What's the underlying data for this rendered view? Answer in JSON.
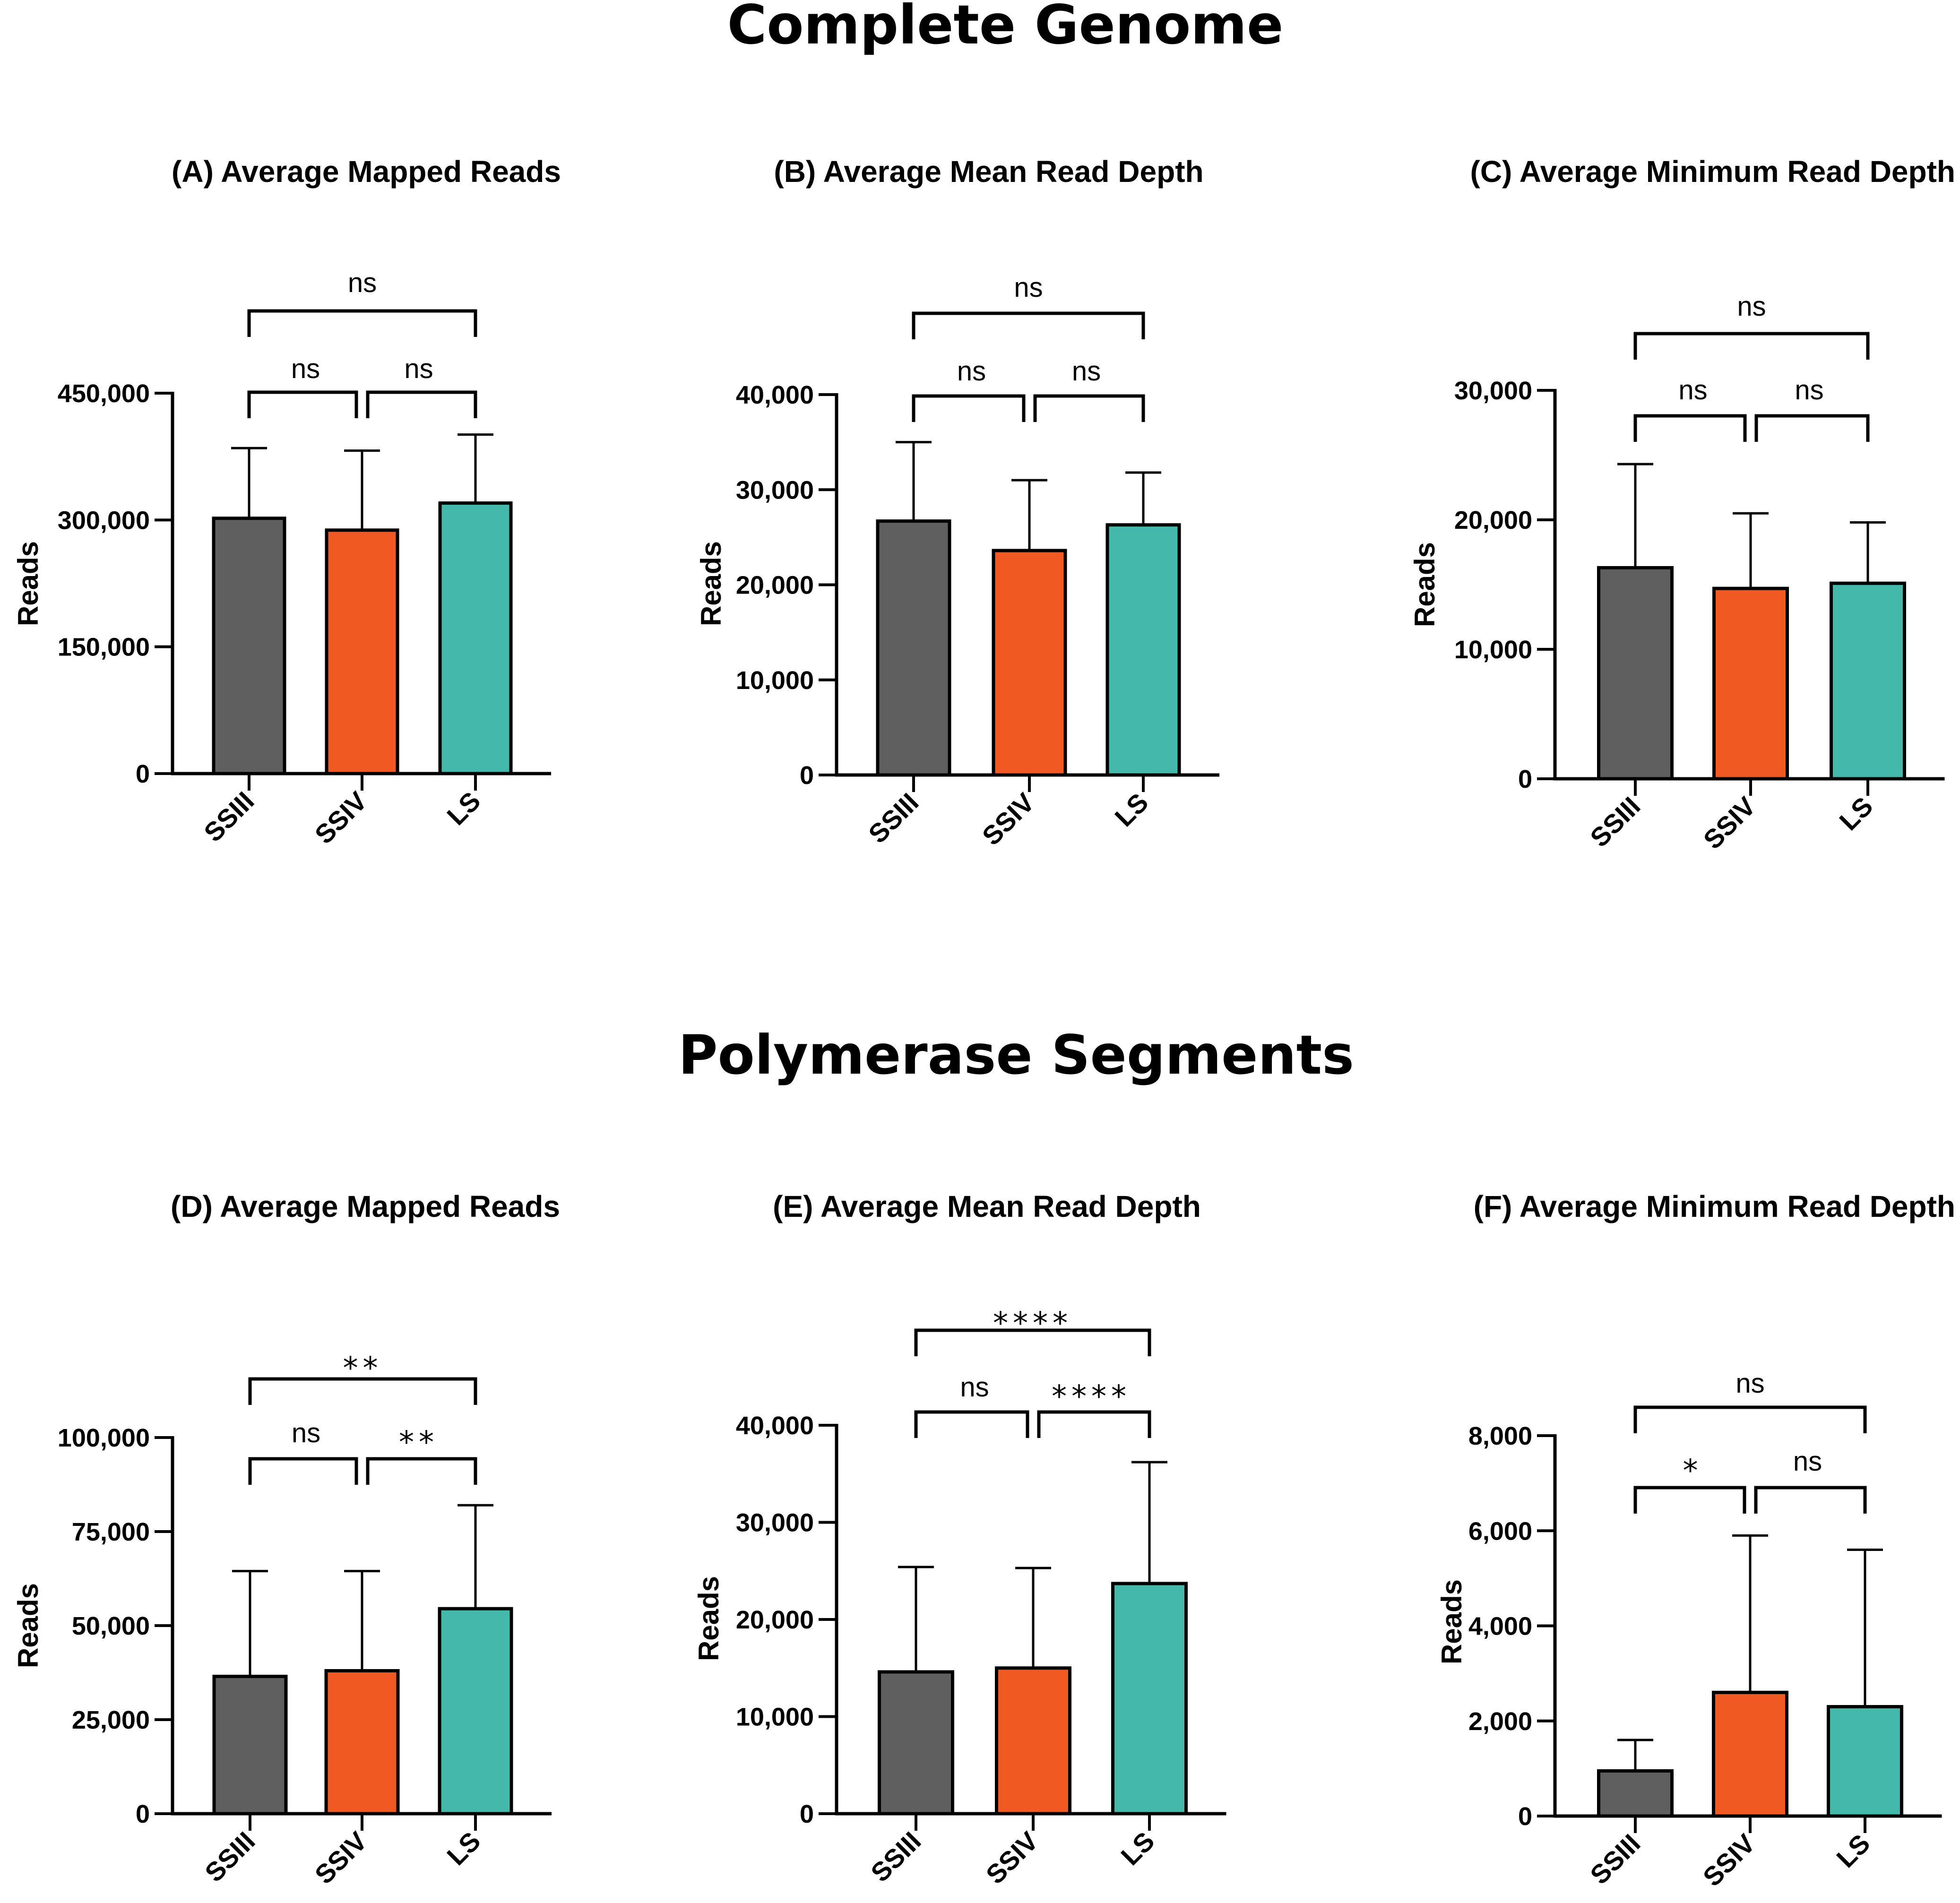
{
  "sections": [
    {
      "title": "Complete Genome"
    },
    {
      "title": "Polymerase Segments"
    }
  ],
  "colors": {
    "SSIII": "#5f5f5f",
    "SSIV": "#f05a22",
    "LS": "#44b8aa",
    "stroke": "#000000"
  },
  "chart_data": [
    {
      "panel": "A",
      "type": "bar",
      "title": "(A) Average Mapped Reads",
      "categories": [
        "SSIII",
        "SSIV",
        "LS"
      ],
      "values": [
        302000,
        288000,
        320000
      ],
      "error_upper": [
        385000,
        382000,
        401000
      ],
      "ylabel": "Reads",
      "ylim": [
        0,
        450000
      ],
      "yticks": [
        0,
        150000,
        300000,
        450000
      ],
      "ytick_labels": [
        "0",
        "150,000",
        "300,000",
        "450,000"
      ],
      "comparisons": [
        {
          "pair": [
            "SSIII",
            "SSIV"
          ],
          "label": "ns"
        },
        {
          "pair": [
            "SSIV",
            "LS"
          ],
          "label": "ns"
        },
        {
          "pair": [
            "SSIII",
            "LS"
          ],
          "label": "ns"
        }
      ]
    },
    {
      "panel": "B",
      "type": "bar",
      "title": "(B) Average Mean Read Depth",
      "categories": [
        "SSIII",
        "SSIV",
        "LS"
      ],
      "values": [
        26700,
        23600,
        26300
      ],
      "error_upper": [
        35000,
        31000,
        31800
      ],
      "ylabel": "Reads",
      "ylim": [
        0,
        40000
      ],
      "yticks": [
        0,
        10000,
        20000,
        30000,
        40000
      ],
      "ytick_labels": [
        "0",
        "10,000",
        "20,000",
        "30,000",
        "40,000"
      ],
      "comparisons": [
        {
          "pair": [
            "SSIII",
            "SSIV"
          ],
          "label": "ns"
        },
        {
          "pair": [
            "SSIV",
            "LS"
          ],
          "label": "ns"
        },
        {
          "pair": [
            "SSIII",
            "LS"
          ],
          "label": "ns"
        }
      ]
    },
    {
      "panel": "C",
      "type": "bar",
      "title": "(C) Average Minimum Read Depth",
      "categories": [
        "SSIII",
        "SSIV",
        "LS"
      ],
      "values": [
        16300,
        14700,
        15100
      ],
      "error_upper": [
        24300,
        20500,
        19800
      ],
      "ylabel": "Reads",
      "ylim": [
        0,
        30000
      ],
      "yticks": [
        0,
        10000,
        20000,
        30000
      ],
      "ytick_labels": [
        "0",
        "10,000",
        "20,000",
        "30,000"
      ],
      "comparisons": [
        {
          "pair": [
            "SSIII",
            "SSIV"
          ],
          "label": "ns"
        },
        {
          "pair": [
            "SSIV",
            "LS"
          ],
          "label": "ns"
        },
        {
          "pair": [
            "SSIII",
            "LS"
          ],
          "label": "ns"
        }
      ]
    },
    {
      "panel": "D",
      "type": "bar",
      "title": "(D) Average Mapped Reads",
      "categories": [
        "SSIII",
        "SSIV",
        "LS"
      ],
      "values": [
        36500,
        38000,
        54500
      ],
      "error_upper": [
        64500,
        64500,
        82000
      ],
      "ylabel": "Reads",
      "ylim": [
        0,
        100000
      ],
      "yticks": [
        0,
        25000,
        50000,
        75000,
        100000
      ],
      "ytick_labels": [
        "0",
        "25,000",
        "50,000",
        "75,000",
        "100,000"
      ],
      "comparisons": [
        {
          "pair": [
            "SSIII",
            "SSIV"
          ],
          "label": "ns"
        },
        {
          "pair": [
            "SSIV",
            "LS"
          ],
          "label": "**"
        },
        {
          "pair": [
            "SSIII",
            "LS"
          ],
          "label": "**"
        }
      ]
    },
    {
      "panel": "E",
      "type": "bar",
      "title": "(E) Average Mean Read Depth",
      "categories": [
        "SSIII",
        "SSIV",
        "LS"
      ],
      "values": [
        14600,
        15000,
        23700
      ],
      "error_upper": [
        25400,
        25300,
        36200
      ],
      "ylabel": "Reads",
      "ylim": [
        0,
        40000
      ],
      "yticks": [
        0,
        10000,
        20000,
        30000,
        40000
      ],
      "ytick_labels": [
        "0",
        "10,000",
        "20,000",
        "30,000",
        "40,000"
      ],
      "comparisons": [
        {
          "pair": [
            "SSIII",
            "SSIV"
          ],
          "label": "ns"
        },
        {
          "pair": [
            "SSIV",
            "LS"
          ],
          "label": "****"
        },
        {
          "pair": [
            "SSIII",
            "LS"
          ],
          "label": "****"
        }
      ]
    },
    {
      "panel": "F",
      "type": "bar",
      "title": "(F) Average Minimum Read Depth",
      "categories": [
        "SSIII",
        "SSIV",
        "LS"
      ],
      "values": [
        950,
        2600,
        2300
      ],
      "error_upper": [
        1600,
        5900,
        5600
      ],
      "ylabel": "Reads",
      "ylim": [
        0,
        8000
      ],
      "yticks": [
        0,
        2000,
        4000,
        6000,
        8000
      ],
      "ytick_labels": [
        "0",
        "2,000",
        "4,000",
        "6,000",
        "8,000"
      ],
      "comparisons": [
        {
          "pair": [
            "SSIII",
            "SSIV"
          ],
          "label": "*"
        },
        {
          "pair": [
            "SSIV",
            "LS"
          ],
          "label": "ns"
        },
        {
          "pair": [
            "SSIII",
            "LS"
          ],
          "label": "ns"
        }
      ]
    }
  ]
}
